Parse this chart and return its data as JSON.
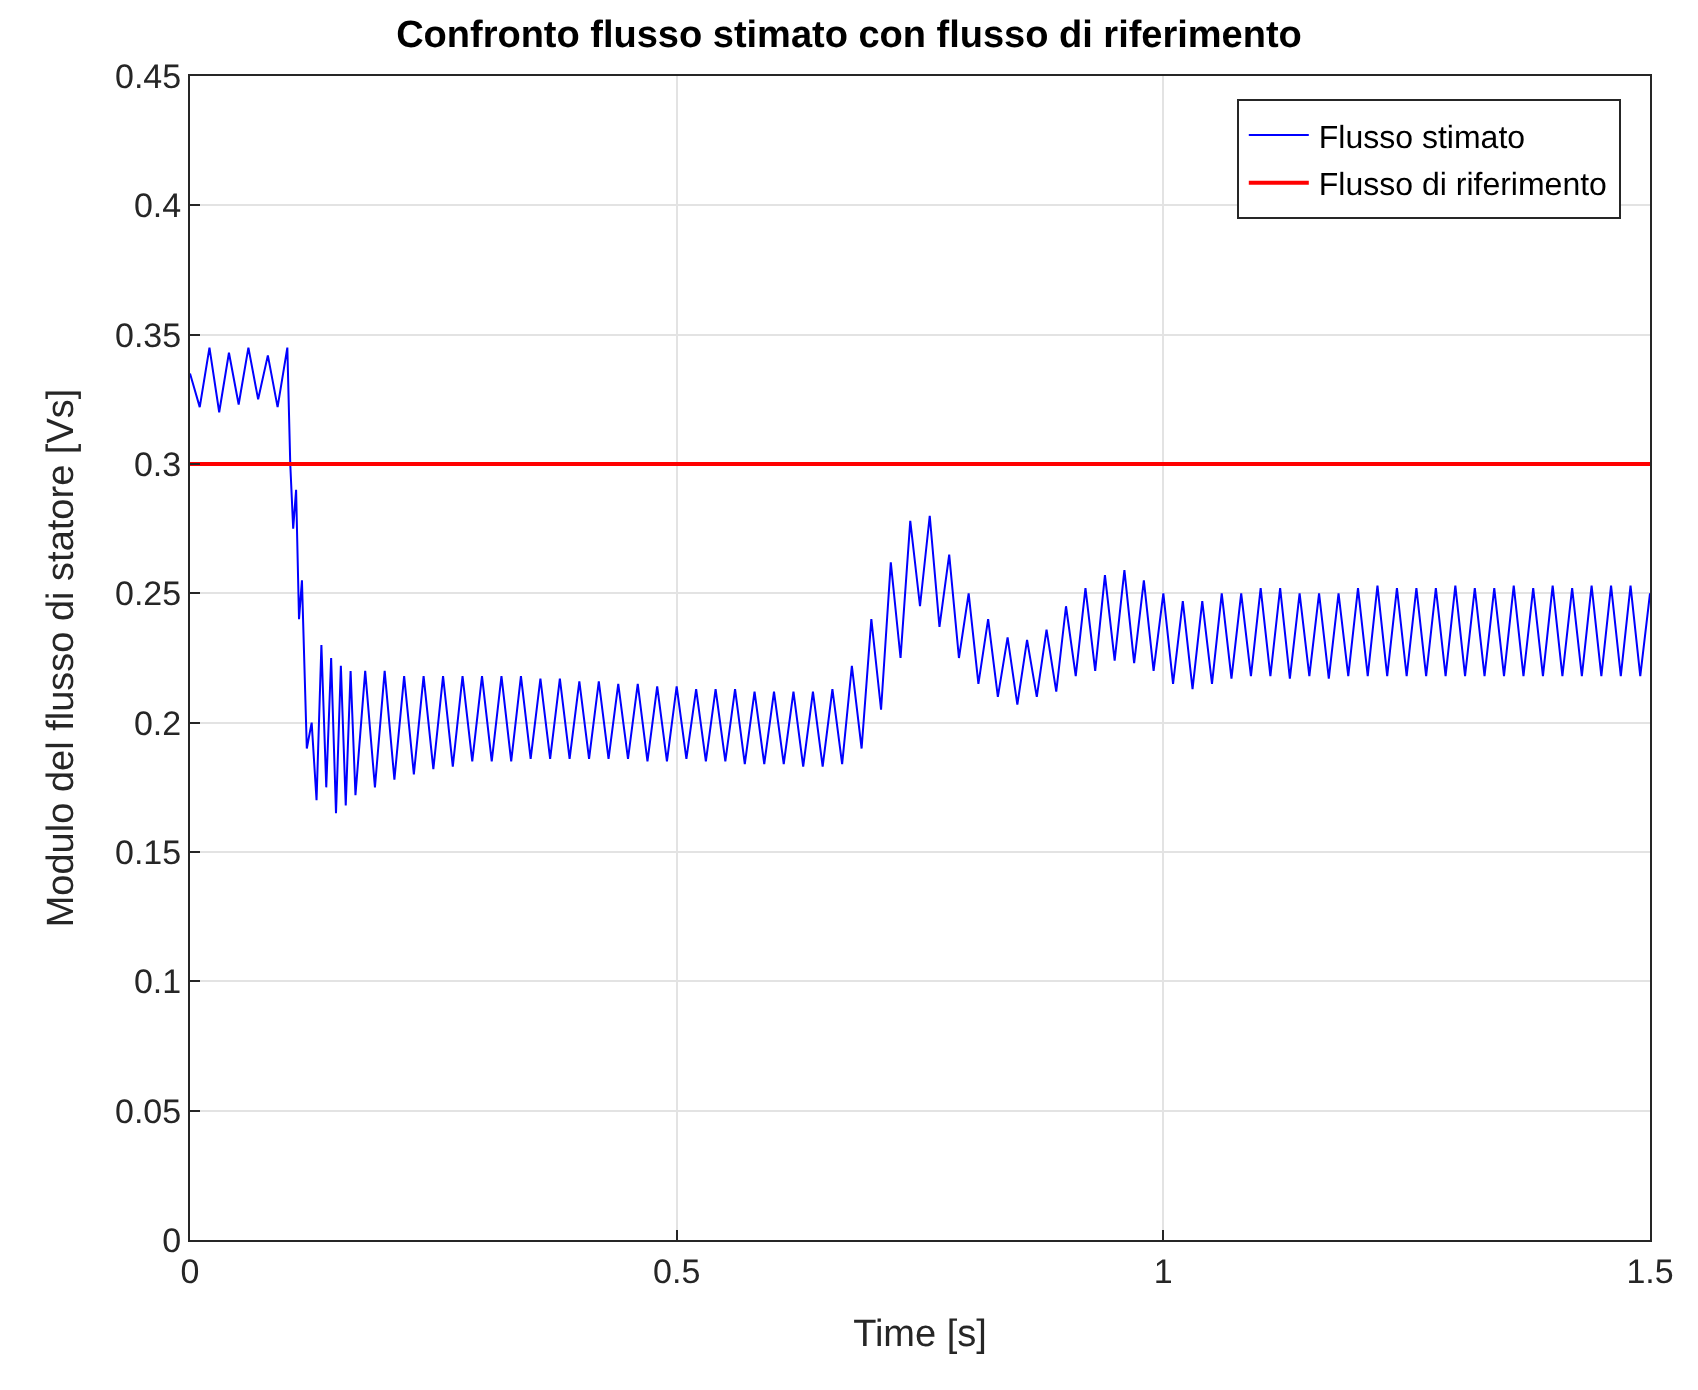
{
  "chart_data": {
    "type": "line",
    "title": "Confronto flusso stimato con flusso di riferimento",
    "xlabel": "Time [s]",
    "ylabel": "Modulo del flusso di statore [Vs]",
    "xlim": [
      0,
      1.5
    ],
    "xticks": [
      0,
      0.5,
      1,
      1.5
    ],
    "ylim": [
      0,
      0.45
    ],
    "yticks": [
      0,
      0.05,
      0.1,
      0.15,
      0.2,
      0.25,
      0.3,
      0.35,
      0.4,
      0.45
    ],
    "grid": true,
    "legend": "top right",
    "marker": "none",
    "series": [
      {
        "name": "Flusso stimato",
        "color": "#0000ff",
        "x": [
          0,
          0.01,
          0.02,
          0.03,
          0.04,
          0.05,
          0.06,
          0.07,
          0.08,
          0.09,
          0.1,
          0.103,
          0.106,
          0.109,
          0.112,
          0.115,
          0.12,
          0.125,
          0.13,
          0.135,
          0.14,
          0.145,
          0.15,
          0.155,
          0.16,
          0.165,
          0.17,
          0.18,
          0.19,
          0.2,
          0.21,
          0.22,
          0.23,
          0.24,
          0.25,
          0.26,
          0.27,
          0.28,
          0.29,
          0.3,
          0.31,
          0.32,
          0.33,
          0.34,
          0.35,
          0.36,
          0.37,
          0.38,
          0.39,
          0.4,
          0.41,
          0.42,
          0.43,
          0.44,
          0.45,
          0.46,
          0.47,
          0.48,
          0.49,
          0.5,
          0.51,
          0.52,
          0.53,
          0.54,
          0.55,
          0.56,
          0.57,
          0.58,
          0.59,
          0.6,
          0.61,
          0.62,
          0.63,
          0.64,
          0.65,
          0.66,
          0.67,
          0.68,
          0.69,
          0.7,
          0.71,
          0.72,
          0.73,
          0.74,
          0.75,
          0.76,
          0.77,
          0.78,
          0.79,
          0.8,
          0.81,
          0.82,
          0.83,
          0.84,
          0.85,
          0.86,
          0.87,
          0.88,
          0.89,
          0.9,
          0.91,
          0.92,
          0.93,
          0.94,
          0.95,
          0.96,
          0.97,
          0.98,
          0.99,
          1.0,
          1.01,
          1.02,
          1.03,
          1.04,
          1.05,
          1.06,
          1.07,
          1.08,
          1.09,
          1.1,
          1.11,
          1.12,
          1.13,
          1.14,
          1.15,
          1.16,
          1.17,
          1.18,
          1.19,
          1.2,
          1.21,
          1.22,
          1.23,
          1.24,
          1.25,
          1.26,
          1.27,
          1.28,
          1.29,
          1.3,
          1.31,
          1.32,
          1.33,
          1.34,
          1.35,
          1.36,
          1.37,
          1.38,
          1.39,
          1.4,
          1.41,
          1.42,
          1.43,
          1.44,
          1.45,
          1.46,
          1.47,
          1.48,
          1.49,
          1.5
        ],
        "values": [
          0.335,
          0.322,
          0.345,
          0.32,
          0.343,
          0.323,
          0.345,
          0.325,
          0.342,
          0.322,
          0.345,
          0.3,
          0.275,
          0.29,
          0.24,
          0.255,
          0.19,
          0.2,
          0.17,
          0.23,
          0.175,
          0.225,
          0.165,
          0.222,
          0.168,
          0.22,
          0.172,
          0.22,
          0.175,
          0.22,
          0.178,
          0.218,
          0.18,
          0.218,
          0.182,
          0.218,
          0.183,
          0.218,
          0.185,
          0.218,
          0.185,
          0.218,
          0.185,
          0.218,
          0.186,
          0.217,
          0.186,
          0.217,
          0.186,
          0.216,
          0.186,
          0.216,
          0.186,
          0.215,
          0.186,
          0.215,
          0.185,
          0.214,
          0.185,
          0.214,
          0.186,
          0.213,
          0.185,
          0.213,
          0.185,
          0.213,
          0.184,
          0.212,
          0.184,
          0.212,
          0.184,
          0.212,
          0.183,
          0.212,
          0.183,
          0.213,
          0.184,
          0.222,
          0.19,
          0.24,
          0.205,
          0.262,
          0.225,
          0.278,
          0.245,
          0.28,
          0.237,
          0.265,
          0.225,
          0.25,
          0.215,
          0.24,
          0.21,
          0.233,
          0.207,
          0.232,
          0.21,
          0.236,
          0.212,
          0.245,
          0.218,
          0.252,
          0.22,
          0.257,
          0.224,
          0.259,
          0.223,
          0.255,
          0.22,
          0.25,
          0.215,
          0.247,
          0.213,
          0.247,
          0.215,
          0.25,
          0.217,
          0.25,
          0.218,
          0.252,
          0.218,
          0.252,
          0.217,
          0.25,
          0.218,
          0.25,
          0.217,
          0.25,
          0.218,
          0.252,
          0.218,
          0.253,
          0.218,
          0.252,
          0.218,
          0.252,
          0.218,
          0.252,
          0.218,
          0.253,
          0.218,
          0.252,
          0.218,
          0.252,
          0.218,
          0.253,
          0.218,
          0.252,
          0.218,
          0.253,
          0.218,
          0.252,
          0.218,
          0.253,
          0.218,
          0.253,
          0.218,
          0.253,
          0.218,
          0.25
        ]
      },
      {
        "name": "Flusso di riferimento",
        "color": "#ff0000",
        "x": [
          0,
          1.5
        ],
        "values": [
          0.3,
          0.3
        ]
      }
    ]
  }
}
